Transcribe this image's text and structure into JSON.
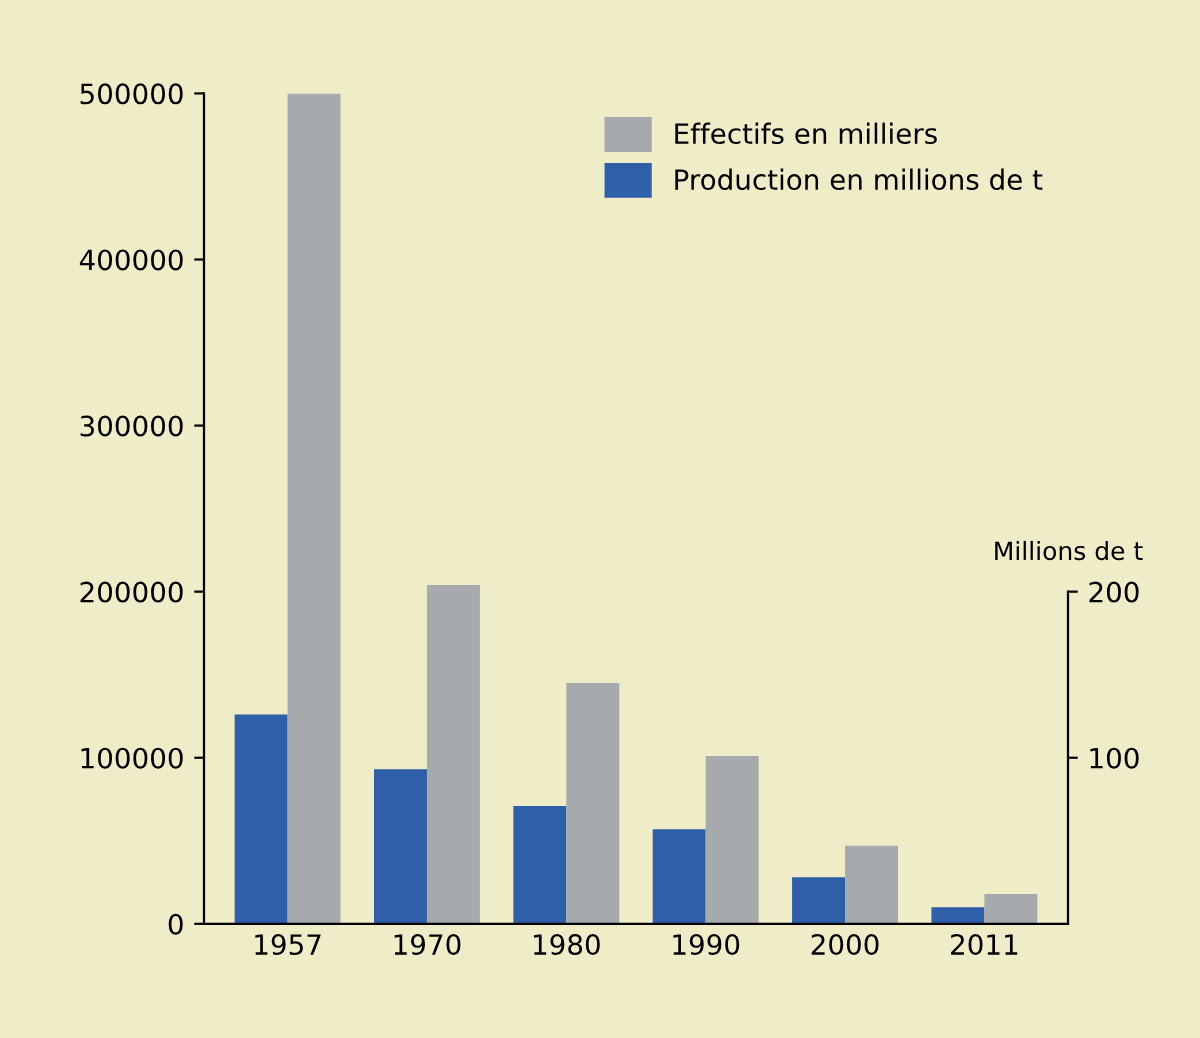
{
  "chart_data": {
    "type": "bar",
    "y2label": "Millions de t",
    "categories": [
      "1957",
      "1970",
      "1980",
      "1990",
      "2000",
      "2011"
    ],
    "series": [
      {
        "name": "Production en millions de t",
        "color": "#2f5fa8",
        "axis": "y2",
        "values": [
          126,
          93,
          71,
          57,
          28,
          10
        ]
      },
      {
        "name": "Effectifs en milliers",
        "color": "#a6aaac",
        "values": [
          500000,
          204000,
          145000,
          101000,
          47000,
          18000
        ]
      }
    ],
    "ylim": [
      0,
      500000
    ],
    "yticks": [
      {
        "value": 0,
        "label": "0"
      },
      {
        "value": 100000,
        "label": "100000"
      },
      {
        "value": 200000,
        "label": "200000"
      },
      {
        "value": 300000,
        "label": "300000"
      },
      {
        "value": 400000,
        "label": "400000"
      },
      {
        "value": 500000,
        "label": "500000"
      }
    ],
    "y2lim": [
      0,
      500
    ],
    "y2ticks": [
      100,
      200
    ],
    "legend": "top right",
    "grid": false
  }
}
